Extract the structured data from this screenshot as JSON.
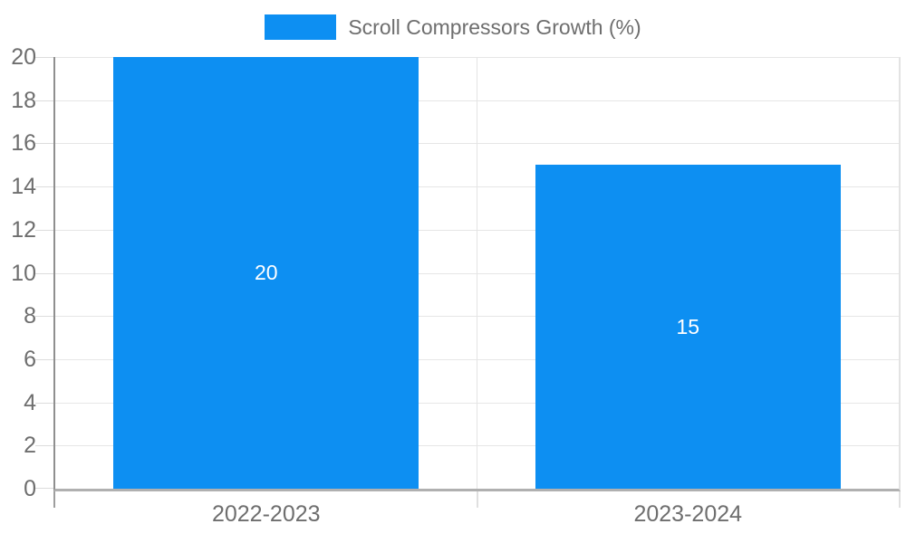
{
  "chart_data": {
    "type": "bar",
    "legend_label": "Scroll Compressors Growth (%)",
    "legend_position": "top-center",
    "categories": [
      "2022-2023",
      "2023-2024"
    ],
    "series": [
      {
        "name": "Scroll Compressors Growth (%)",
        "values": [
          20,
          15
        ]
      }
    ],
    "value_labels": [
      "20",
      "15"
    ],
    "ylim": [
      0,
      20
    ],
    "yticks": [
      0,
      2,
      4,
      6,
      8,
      10,
      12,
      14,
      16,
      18,
      20
    ],
    "grid": true,
    "colors": {
      "bar": "#0d8ff2",
      "grid_line": "#e6e6e6",
      "axis_line": "#8f8f8f",
      "baseline": "#b0b0b0",
      "tick_stub": "#dcdcdc",
      "axis_text": "#6e6e6e",
      "value_label_text": "#ffffff",
      "background": "#ffffff"
    }
  }
}
